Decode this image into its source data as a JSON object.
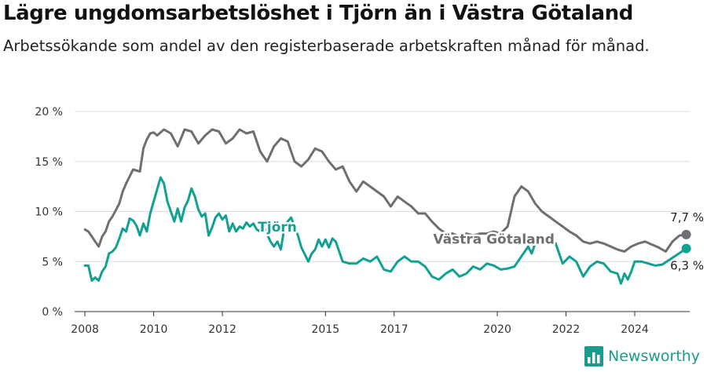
{
  "title": "Lägre ungdomsarbetslöshet i Tjörn än i Västra Götaland",
  "subtitle": "Arbetssökande som andel av den registerbaserade arbetskraften månad för månad.",
  "brand": "Newsworthy",
  "colors": {
    "tjorn": "#12a190",
    "vg": "#6e6e73"
  },
  "chart_data": {
    "type": "line",
    "title": "Lägre ungdomsarbetslöshet i Tjörn än i Västra Götaland",
    "subtitle": "Arbetssökande som andel av den registerbaserade arbetskraften månad för månad.",
    "xlabel": "",
    "ylabel": "",
    "ylim": [
      0,
      20
    ],
    "xlim": [
      2007.7,
      2025.6
    ],
    "y_ticks": [
      0,
      5,
      10,
      15,
      20
    ],
    "y_tick_labels": [
      "0 %",
      "5 %",
      "10 %",
      "15 %",
      "20 %"
    ],
    "x_ticks": [
      2008,
      2010,
      2012,
      2015,
      2017,
      2020,
      2022,
      2024
    ],
    "x_tick_labels": [
      "2008",
      "2010",
      "2012",
      "2015",
      "2017",
      "2020",
      "2022",
      "2024"
    ],
    "grid": true,
    "legend": "none",
    "series": [
      {
        "name": "Västra Götaland",
        "color": "#6e6e73",
        "end_label": "7,7 %",
        "points": [
          [
            2008.0,
            8.2
          ],
          [
            2008.1,
            8.0
          ],
          [
            2008.2,
            7.5
          ],
          [
            2008.3,
            7.0
          ],
          [
            2008.4,
            6.5
          ],
          [
            2008.5,
            7.5
          ],
          [
            2008.6,
            8.0
          ],
          [
            2008.7,
            9.0
          ],
          [
            2008.8,
            9.5
          ],
          [
            2009.0,
            10.8
          ],
          [
            2009.1,
            12.0
          ],
          [
            2009.2,
            12.8
          ],
          [
            2009.3,
            13.5
          ],
          [
            2009.4,
            14.2
          ],
          [
            2009.6,
            14.0
          ],
          [
            2009.7,
            16.3
          ],
          [
            2009.8,
            17.2
          ],
          [
            2009.9,
            17.8
          ],
          [
            2010.0,
            17.9
          ],
          [
            2010.1,
            17.6
          ],
          [
            2010.3,
            18.2
          ],
          [
            2010.5,
            17.8
          ],
          [
            2010.7,
            16.5
          ],
          [
            2010.9,
            18.2
          ],
          [
            2011.1,
            18.0
          ],
          [
            2011.3,
            16.8
          ],
          [
            2011.5,
            17.6
          ],
          [
            2011.7,
            18.2
          ],
          [
            2011.9,
            18.0
          ],
          [
            2012.1,
            16.8
          ],
          [
            2012.3,
            17.3
          ],
          [
            2012.5,
            18.2
          ],
          [
            2012.7,
            17.8
          ],
          [
            2012.9,
            18.0
          ],
          [
            2013.1,
            16.0
          ],
          [
            2013.3,
            15.0
          ],
          [
            2013.5,
            16.5
          ],
          [
            2013.7,
            17.3
          ],
          [
            2013.9,
            17.0
          ],
          [
            2014.1,
            15.0
          ],
          [
            2014.3,
            14.5
          ],
          [
            2014.5,
            15.2
          ],
          [
            2014.7,
            16.3
          ],
          [
            2014.9,
            16.0
          ],
          [
            2015.1,
            15.0
          ],
          [
            2015.3,
            14.2
          ],
          [
            2015.5,
            14.5
          ],
          [
            2015.7,
            13.0
          ],
          [
            2015.9,
            12.0
          ],
          [
            2016.1,
            13.0
          ],
          [
            2016.3,
            12.5
          ],
          [
            2016.5,
            12.0
          ],
          [
            2016.7,
            11.5
          ],
          [
            2016.9,
            10.5
          ],
          [
            2017.1,
            11.5
          ],
          [
            2017.3,
            11.0
          ],
          [
            2017.5,
            10.5
          ],
          [
            2017.7,
            9.8
          ],
          [
            2017.9,
            9.8
          ],
          [
            2018.1,
            9.0
          ],
          [
            2018.3,
            8.3
          ],
          [
            2018.5,
            7.8
          ],
          [
            2018.7,
            7.8
          ],
          [
            2018.9,
            7.5
          ],
          [
            2019.1,
            7.8
          ],
          [
            2019.3,
            7.6
          ],
          [
            2019.5,
            7.8
          ],
          [
            2019.7,
            7.8
          ],
          [
            2019.9,
            8.0
          ],
          [
            2020.1,
            7.8
          ],
          [
            2020.3,
            8.5
          ],
          [
            2020.5,
            11.5
          ],
          [
            2020.7,
            12.5
          ],
          [
            2020.9,
            12.0
          ],
          [
            2021.1,
            10.8
          ],
          [
            2021.3,
            10.0
          ],
          [
            2021.5,
            9.5
          ],
          [
            2021.7,
            9.0
          ],
          [
            2021.9,
            8.5
          ],
          [
            2022.1,
            8.0
          ],
          [
            2022.3,
            7.6
          ],
          [
            2022.5,
            7.0
          ],
          [
            2022.7,
            6.8
          ],
          [
            2022.9,
            7.0
          ],
          [
            2023.1,
            6.8
          ],
          [
            2023.3,
            6.5
          ],
          [
            2023.5,
            6.2
          ],
          [
            2023.7,
            6.0
          ],
          [
            2023.9,
            6.5
          ],
          [
            2024.1,
            6.8
          ],
          [
            2024.3,
            7.0
          ],
          [
            2024.5,
            6.7
          ],
          [
            2024.7,
            6.4
          ],
          [
            2024.9,
            6.0
          ],
          [
            2025.1,
            7.0
          ],
          [
            2025.3,
            7.6
          ],
          [
            2025.5,
            7.7
          ]
        ]
      },
      {
        "name": "Tjörn",
        "color": "#12a190",
        "end_label": "6,3 %",
        "points": [
          [
            2008.0,
            4.6
          ],
          [
            2008.1,
            4.6
          ],
          [
            2008.2,
            3.1
          ],
          [
            2008.3,
            3.4
          ],
          [
            2008.4,
            3.1
          ],
          [
            2008.5,
            4.0
          ],
          [
            2008.6,
            4.5
          ],
          [
            2008.7,
            5.8
          ],
          [
            2008.8,
            6.0
          ],
          [
            2008.9,
            6.4
          ],
          [
            2009.0,
            7.3
          ],
          [
            2009.1,
            8.3
          ],
          [
            2009.2,
            8.0
          ],
          [
            2009.3,
            9.3
          ],
          [
            2009.4,
            9.1
          ],
          [
            2009.5,
            8.6
          ],
          [
            2009.6,
            7.6
          ],
          [
            2009.7,
            8.8
          ],
          [
            2009.8,
            8.0
          ],
          [
            2009.9,
            9.8
          ],
          [
            2010.0,
            11.0
          ],
          [
            2010.1,
            12.2
          ],
          [
            2010.2,
            13.4
          ],
          [
            2010.3,
            12.8
          ],
          [
            2010.4,
            11.0
          ],
          [
            2010.5,
            10.0
          ],
          [
            2010.6,
            9.0
          ],
          [
            2010.7,
            10.3
          ],
          [
            2010.8,
            9.0
          ],
          [
            2010.9,
            10.4
          ],
          [
            2011.0,
            11.1
          ],
          [
            2011.1,
            12.3
          ],
          [
            2011.2,
            11.5
          ],
          [
            2011.3,
            10.2
          ],
          [
            2011.4,
            9.5
          ],
          [
            2011.5,
            9.8
          ],
          [
            2011.6,
            7.6
          ],
          [
            2011.7,
            8.4
          ],
          [
            2011.8,
            9.4
          ],
          [
            2011.9,
            9.8
          ],
          [
            2012.0,
            9.2
          ],
          [
            2012.1,
            9.6
          ],
          [
            2012.2,
            8.0
          ],
          [
            2012.3,
            8.8
          ],
          [
            2012.4,
            8.0
          ],
          [
            2012.5,
            8.5
          ],
          [
            2012.6,
            8.3
          ],
          [
            2012.7,
            8.9
          ],
          [
            2012.8,
            8.5
          ],
          [
            2012.9,
            8.8
          ],
          [
            2013.0,
            8.2
          ],
          [
            2013.1,
            8.0
          ],
          [
            2013.2,
            8.5
          ],
          [
            2013.4,
            7.0
          ],
          [
            2013.5,
            6.5
          ],
          [
            2013.6,
            7.0
          ],
          [
            2013.7,
            6.2
          ],
          [
            2013.8,
            8.3
          ],
          [
            2013.9,
            9.0
          ],
          [
            2014.0,
            9.4
          ],
          [
            2014.1,
            8.5
          ],
          [
            2014.2,
            7.6
          ],
          [
            2014.3,
            6.4
          ],
          [
            2014.5,
            5.0
          ],
          [
            2014.6,
            5.8
          ],
          [
            2014.7,
            6.2
          ],
          [
            2014.8,
            7.2
          ],
          [
            2014.9,
            6.5
          ],
          [
            2015.0,
            7.2
          ],
          [
            2015.1,
            6.4
          ],
          [
            2015.2,
            7.3
          ],
          [
            2015.3,
            7.0
          ],
          [
            2015.4,
            6.0
          ],
          [
            2015.5,
            5.0
          ],
          [
            2015.7,
            4.8
          ],
          [
            2015.9,
            4.8
          ],
          [
            2016.1,
            5.3
          ],
          [
            2016.3,
            5.0
          ],
          [
            2016.5,
            5.5
          ],
          [
            2016.7,
            4.2
          ],
          [
            2016.9,
            4.0
          ],
          [
            2017.1,
            5.0
          ],
          [
            2017.3,
            5.5
          ],
          [
            2017.5,
            5.0
          ],
          [
            2017.7,
            5.0
          ],
          [
            2017.9,
            4.5
          ],
          [
            2018.1,
            3.5
          ],
          [
            2018.3,
            3.2
          ],
          [
            2018.5,
            3.8
          ],
          [
            2018.7,
            4.2
          ],
          [
            2018.9,
            3.5
          ],
          [
            2019.1,
            3.8
          ],
          [
            2019.3,
            4.5
          ],
          [
            2019.5,
            4.2
          ],
          [
            2019.7,
            4.8
          ],
          [
            2019.9,
            4.6
          ],
          [
            2020.1,
            4.2
          ],
          [
            2020.3,
            4.3
          ],
          [
            2020.5,
            4.5
          ],
          [
            2020.7,
            5.5
          ],
          [
            2020.9,
            6.5
          ],
          [
            2021.0,
            5.8
          ],
          [
            2021.1,
            6.8
          ],
          [
            2021.3,
            7.5
          ],
          [
            2021.5,
            7.2
          ],
          [
            2021.7,
            6.8
          ],
          [
            2021.9,
            4.8
          ],
          [
            2022.1,
            5.5
          ],
          [
            2022.3,
            5.0
          ],
          [
            2022.5,
            3.5
          ],
          [
            2022.7,
            4.5
          ],
          [
            2022.9,
            5.0
          ],
          [
            2023.1,
            4.8
          ],
          [
            2023.3,
            4.0
          ],
          [
            2023.5,
            3.8
          ],
          [
            2023.6,
            2.8
          ],
          [
            2023.7,
            3.8
          ],
          [
            2023.8,
            3.2
          ],
          [
            2023.9,
            4.0
          ],
          [
            2024.0,
            5.0
          ],
          [
            2024.2,
            5.0
          ],
          [
            2024.4,
            4.8
          ],
          [
            2024.6,
            4.6
          ],
          [
            2024.8,
            4.7
          ],
          [
            2025.5,
            6.3
          ]
        ]
      }
    ],
    "annotations": [
      {
        "text": "Tjörn",
        "series": "Tjörn",
        "x": 2013.6,
        "y": 8.0
      },
      {
        "text": "Västra Götaland",
        "series": "Västra Götaland",
        "x": 2019.9,
        "y": 6.8
      }
    ]
  }
}
